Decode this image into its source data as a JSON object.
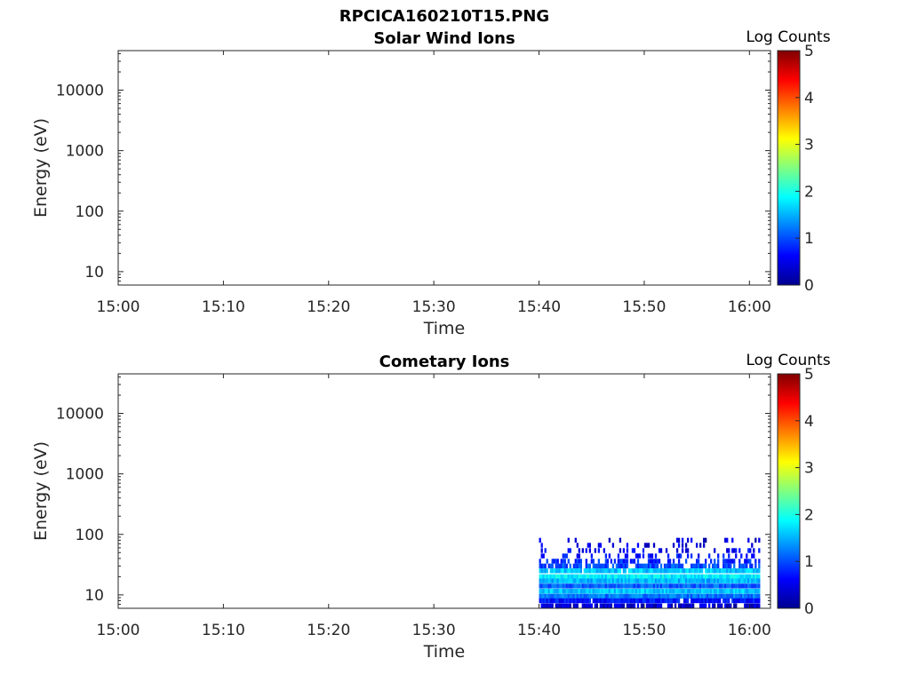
{
  "figure_title": "RPCICA160210T15.PNG",
  "chart_data": [
    {
      "type": "heatmap",
      "title": "Solar Wind Ions",
      "xlabel": "Time",
      "ylabel": "Energy (eV)",
      "x_ticks": [
        "15:00",
        "15:10",
        "15:20",
        "15:30",
        "15:40",
        "15:50",
        "16:00"
      ],
      "xlim": [
        "15:00",
        "16:02"
      ],
      "y_ticks": [
        {
          "value": 10,
          "label": "10"
        },
        {
          "value": 100,
          "label": "100"
        },
        {
          "value": 1000,
          "label": "1000"
        },
        {
          "value": 10000,
          "label": "10000"
        }
      ],
      "ylim": [
        6,
        45000
      ],
      "y_scale": "log",
      "colorbar": {
        "label": "Log Counts",
        "ticks": [
          "0",
          "1",
          "2",
          "3",
          "4",
          "5"
        ],
        "range": [
          0,
          5
        ],
        "colormap": "jet"
      },
      "data_rows": []
    },
    {
      "type": "heatmap",
      "title": "Cometary Ions",
      "xlabel": "Time",
      "ylabel": "Energy (eV)",
      "x_ticks": [
        "15:00",
        "15:10",
        "15:20",
        "15:30",
        "15:40",
        "15:50",
        "16:00"
      ],
      "xlim": [
        "15:00",
        "16:02"
      ],
      "y_ticks": [
        {
          "value": 10,
          "label": "10"
        },
        {
          "value": 100,
          "label": "100"
        },
        {
          "value": 1000,
          "label": "1000"
        },
        {
          "value": 10000,
          "label": "10000"
        }
      ],
      "ylim": [
        6,
        45000
      ],
      "y_scale": "log",
      "colorbar": {
        "label": "Log Counts",
        "ticks": [
          "0",
          "1",
          "2",
          "3",
          "4",
          "5"
        ],
        "range": [
          0,
          5
        ],
        "colormap": "jet"
      },
      "data_time_range": [
        "15:40",
        "16:01"
      ],
      "data_rows": [
        {
          "energy": 80,
          "log_counts": 0.4,
          "fill": 0.15
        },
        {
          "energy": 66,
          "log_counts": 0.5,
          "fill": 0.2
        },
        {
          "energy": 54,
          "log_counts": 0.6,
          "fill": 0.25
        },
        {
          "energy": 44,
          "log_counts": 0.7,
          "fill": 0.35
        },
        {
          "energy": 36,
          "log_counts": 0.8,
          "fill": 0.55
        },
        {
          "energy": 30,
          "log_counts": 1.0,
          "fill": 0.8
        },
        {
          "energy": 25,
          "log_counts": 1.6,
          "fill": 0.95
        },
        {
          "energy": 20,
          "log_counts": 1.8,
          "fill": 1.0
        },
        {
          "energy": 17,
          "log_counts": 1.5,
          "fill": 1.0
        },
        {
          "energy": 14,
          "log_counts": 1.1,
          "fill": 1.0
        },
        {
          "energy": 11.5,
          "log_counts": 1.6,
          "fill": 1.0
        },
        {
          "energy": 9.5,
          "log_counts": 1.2,
          "fill": 1.0
        },
        {
          "energy": 8,
          "log_counts": 0.7,
          "fill": 0.95
        },
        {
          "energy": 6.6,
          "log_counts": 0.4,
          "fill": 0.7
        }
      ]
    }
  ]
}
